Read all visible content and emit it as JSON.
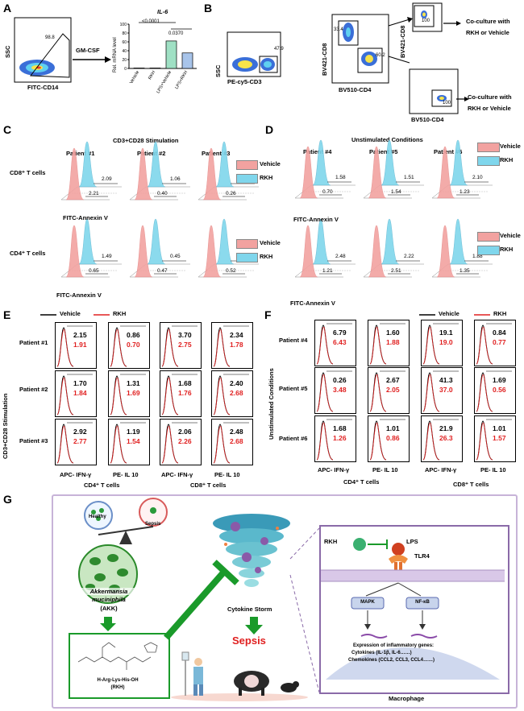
{
  "panels": {
    "A": "A",
    "B": "B",
    "C": "C",
    "D": "D",
    "E": "E",
    "F": "F",
    "G": "G"
  },
  "panelA": {
    "flow_x": "FITC-CD14",
    "flow_y": "SSC",
    "gate_pct": "98.8",
    "arrow_label": "GM-CSF",
    "bar_title": "IL-6",
    "bar_ylabel": "Rel. mRNA level",
    "yticks": [
      "100",
      "80",
      "60",
      "40",
      "20",
      "0"
    ],
    "categories": [
      "Vehicle",
      "RKH",
      "LPS+Vehicle",
      "LPS+RKH"
    ],
    "values": [
      1,
      1,
      62,
      35
    ],
    "p1": "<0.0001",
    "p2": "0.0370"
  },
  "panelB": {
    "flow1_x": "PE-cy5-CD3",
    "flow1_y": "SSC",
    "flow1_pct": "47.9",
    "flow2_x": "BV510-CD4",
    "flow2_y": "BV421-CD8",
    "flow2_pct1": "33.4",
    "flow2_pct2": "60.2",
    "flow3_y": "BV421-CD8",
    "flow3_pct": "100",
    "flow4_x": "BV510-CD4",
    "flow4_pct": "100",
    "cocult1": "Co-culture with",
    "cocult1b": "RKH or Vehicle",
    "cocult2": "Co-culture with",
    "cocult2b": "RKH or Vehicle"
  },
  "panelC": {
    "title": "CD3+CD28 Stimulation",
    "patients": [
      "Patient #1",
      "Patient #2",
      "Patient #3"
    ],
    "row1": "CD8⁺ T cells",
    "row2": "CD4⁺ T cells",
    "xaxis": "FITC-Annexin V",
    "legend": [
      "Vehicle",
      "RKH"
    ],
    "cd8_rkh": [
      "2.09",
      "1.06",
      "0.30"
    ],
    "cd8_veh": [
      "2.21",
      "0.40",
      "0.26"
    ],
    "cd4_rkh": [
      "1.49",
      "0.45",
      "0.66"
    ],
    "cd4_veh": [
      "0.65",
      "0.47",
      "0.52"
    ]
  },
  "panelD": {
    "title": "Unstimulated Conditions",
    "patients": [
      "Patient #4",
      "Patient #5",
      "Patient #6"
    ],
    "xaxis": "FITC-Annexin V",
    "legend": [
      "Vehicle",
      "RKH"
    ],
    "cd8_rkh": [
      "1.58",
      "1.51",
      "2.10"
    ],
    "cd8_veh": [
      "0.70",
      "1.54",
      "1.23"
    ],
    "cd4_rkh": [
      "2.48",
      "2.22",
      "1.88"
    ],
    "cd4_veh": [
      "1.21",
      "2.51",
      "1.35"
    ]
  },
  "panelE": {
    "side": "CD3+CD28 Stimulation",
    "legend": [
      "Vehicle",
      "RKH"
    ],
    "patients": [
      "Patient #1",
      "Patient #2",
      "Patient #3"
    ],
    "cols": [
      "APC- IFN-γ",
      "PE- IL 10",
      "APC- IFN-γ",
      "PE- IL 10"
    ],
    "groups": [
      "CD4⁺ T cells",
      "CD8⁺ T cells"
    ],
    "veh": [
      [
        "2.15",
        "0.86",
        "3.70",
        "2.34"
      ],
      [
        "1.70",
        "1.31",
        "1.68",
        "2.40"
      ],
      [
        "2.92",
        "1.19",
        "2.06",
        "2.48"
      ]
    ],
    "rkh": [
      [
        "1.91",
        "0.70",
        "2.75",
        "1.78"
      ],
      [
        "1.84",
        "1.69",
        "1.76",
        "2.68"
      ],
      [
        "2.77",
        "1.54",
        "2.26",
        "2.68"
      ]
    ]
  },
  "panelF": {
    "side": "Unstimulated Conditions",
    "legend": [
      "Vehicle",
      "RKH"
    ],
    "patients": [
      "Patient #4",
      "Patient #5",
      "Patient #6"
    ],
    "cols": [
      "APC- IFN-γ",
      "PE- IL 10",
      "APC- IFN-γ",
      "PE- IL 10"
    ],
    "groups": [
      "CD4⁺ T cells",
      "CD8⁺ T cells"
    ],
    "veh": [
      [
        "6.79",
        "1.60",
        "19.1",
        "0.84"
      ],
      [
        "0.26",
        "2.67",
        "41.3",
        "1.69"
      ],
      [
        "1.68",
        "1.01",
        "21.9",
        "1.01"
      ]
    ],
    "rkh": [
      [
        "6.43",
        "1.88",
        "19.0",
        "0.77"
      ],
      [
        "3.48",
        "2.05",
        "37.0",
        "0.56"
      ],
      [
        "1.26",
        "0.86",
        "26.3",
        "1.57"
      ]
    ]
  },
  "panelG": {
    "healthy": "Healthy",
    "sepsis_small": "Sepsis",
    "akk1": "Akkermansia",
    "akk2": "muciniphila",
    "akk3": "(AKK)",
    "peptide1": "H-Arg-Lys-His-OH",
    "peptide2": "(RKH)",
    "storm": "Cytokine Storm",
    "sepsis": "Sepsis",
    "rkh": "RKH",
    "lps": "LPS",
    "tlr4": "TLR4",
    "mapk": "MAPK",
    "nfkb": "NF-κB",
    "expr1": "Expression of inflammatory genes:",
    "expr2": "Cytokines (IL-1β, IL-6……)",
    "expr3": "Chemokines (CCL2, CCL3, CCL4……)",
    "macrophage": "Macrophage"
  },
  "colors": {
    "vehicle": "#f2a2a0",
    "rkh": "#7fd6ec",
    "red_text": "#e02020",
    "green": "#1a9a2a",
    "purple": "#8a6aa8"
  }
}
